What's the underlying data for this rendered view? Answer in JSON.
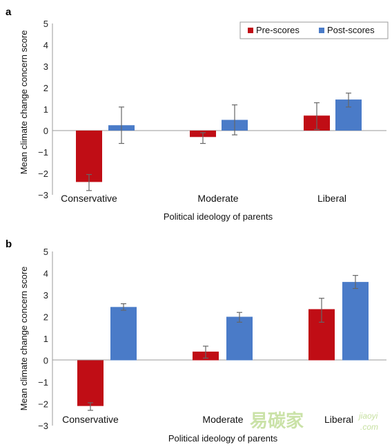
{
  "colors": {
    "pre": "#c00d15",
    "post": "#4a7bc8",
    "error_bar": "#666666"
  },
  "chart_data": [
    {
      "panel_label": "a",
      "type": "bar",
      "categories": [
        "Conservative",
        "Moderate",
        "Liberal"
      ],
      "series": [
        {
          "name": "Pre-scores",
          "values": [
            -2.4,
            -0.3,
            0.7
          ],
          "err_low": [
            -2.8,
            -0.6,
            0.05
          ],
          "err_high": [
            -2.05,
            -0.1,
            1.3
          ]
        },
        {
          "name": "Post-scores",
          "values": [
            0.25,
            0.5,
            1.45
          ],
          "err_low": [
            -0.6,
            -0.2,
            1.1
          ],
          "err_high": [
            1.1,
            1.2,
            1.75
          ]
        }
      ],
      "xlabel": "Political ideology of parents",
      "ylabel": "Mean climate change concern score",
      "ylim": [
        -3,
        5
      ],
      "yticks": [
        "5",
        "4",
        "3",
        "2",
        "1",
        "0",
        "−1",
        "−2",
        "−3"
      ],
      "legend_position": "top-right"
    },
    {
      "panel_label": "b",
      "type": "bar",
      "categories": [
        "Conservative",
        "Moderate",
        "Liberal"
      ],
      "series": [
        {
          "name": "Pre-scores",
          "values": [
            -2.1,
            0.4,
            2.35
          ],
          "err_low": [
            -2.3,
            0.1,
            1.75
          ],
          "err_high": [
            -1.95,
            0.65,
            2.85
          ]
        },
        {
          "name": "Post-scores",
          "values": [
            2.45,
            2.0,
            3.6
          ],
          "err_low": [
            2.3,
            1.75,
            3.3
          ],
          "err_high": [
            2.6,
            2.2,
            3.9
          ]
        }
      ],
      "xlabel": "Political ideology of parents",
      "ylabel": "Mean climate change concern score",
      "ylim": [
        -3,
        5
      ],
      "yticks": [
        "5",
        "4",
        "3",
        "2",
        "1",
        "0",
        "−1",
        "−2",
        "−3"
      ]
    }
  ],
  "watermark": {
    "text": "易碳家",
    "subtext": "jiaoyi",
    "domain": ".com"
  }
}
